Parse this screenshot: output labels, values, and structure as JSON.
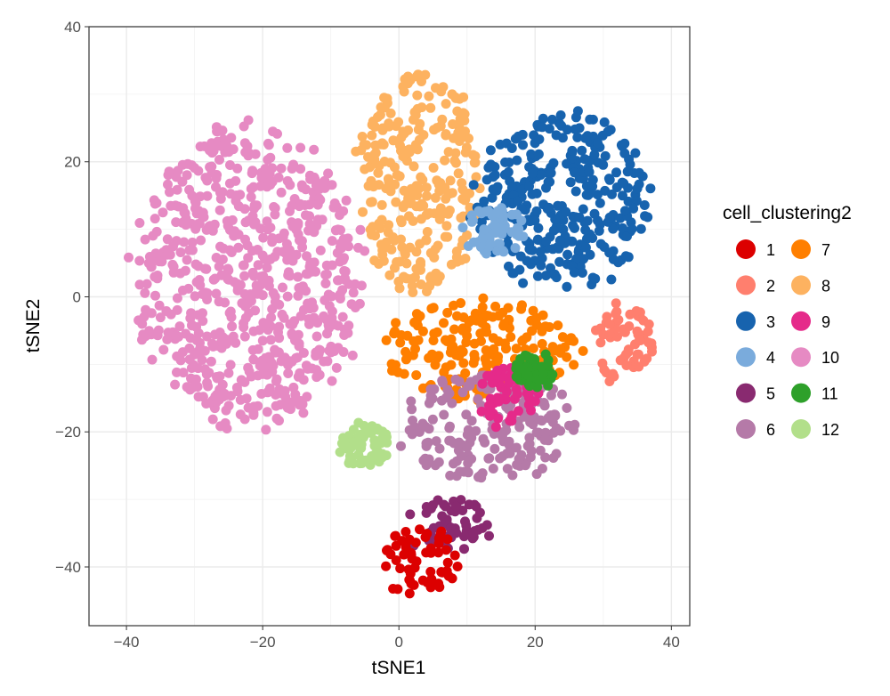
{
  "chart_data": {
    "type": "scatter",
    "xlabel": "tSNE1",
    "ylabel": "tSNE2",
    "xlim": [
      -45.5,
      42.7
    ],
    "ylim": [
      -48.7,
      40
    ],
    "xticks": [
      -40,
      -20,
      0,
      20,
      40
    ],
    "yticks": [
      -40,
      -20,
      0,
      20,
      40
    ],
    "xtick_labels": [
      "−40",
      "−20",
      "0",
      "20",
      "40"
    ],
    "ytick_labels": [
      "−40",
      "−20",
      "0",
      "20",
      "40"
    ],
    "grid": true,
    "legend": {
      "title": "cell_clustering2",
      "placement": "right",
      "entries": [
        {
          "label": "1",
          "color": "#DC0000"
        },
        {
          "label": "2",
          "color": "#FF7F6E"
        },
        {
          "label": "3",
          "color": "#1763AE"
        },
        {
          "label": "4",
          "color": "#7AABDC"
        },
        {
          "label": "5",
          "color": "#892A70"
        },
        {
          "label": "6",
          "color": "#B57AA8"
        },
        {
          "label": "7",
          "color": "#FF7F00"
        },
        {
          "label": "8",
          "color": "#FDB260"
        },
        {
          "label": "9",
          "color": "#E52A8A"
        },
        {
          "label": "10",
          "color": "#E68AC3"
        },
        {
          "label": "11",
          "color": "#2EA02A"
        },
        {
          "label": "12",
          "color": "#B2DF8A"
        }
      ]
    },
    "clusters_approx": [
      {
        "cluster": "10",
        "center": [
          -22,
          3
        ],
        "spread": [
          18,
          24
        ]
      },
      {
        "cluster": "8",
        "center": [
          3,
          17
        ],
        "spread": [
          10,
          17
        ]
      },
      {
        "cluster": "3",
        "center": [
          24,
          14
        ],
        "spread": [
          14,
          14
        ]
      },
      {
        "cluster": "4",
        "center": [
          14,
          10
        ],
        "spread": [
          5,
          4
        ]
      },
      {
        "cluster": "7",
        "center": [
          12,
          -8
        ],
        "spread": [
          16,
          8
        ]
      },
      {
        "cluster": "2",
        "center": [
          33,
          -7
        ],
        "spread": [
          4.5,
          7
        ]
      },
      {
        "cluster": "6",
        "center": [
          13,
          -19
        ],
        "spread": [
          14,
          9
        ]
      },
      {
        "cluster": "9",
        "center": [
          16,
          -15
        ],
        "spread": [
          5,
          5
        ]
      },
      {
        "cluster": "11",
        "center": [
          20,
          -11
        ],
        "spread": [
          3,
          3
        ]
      },
      {
        "cluster": "12",
        "center": [
          -5,
          -22
        ],
        "spread": [
          4,
          3.5
        ]
      },
      {
        "cluster": "5",
        "center": [
          7,
          -34
        ],
        "spread": [
          7,
          4.5
        ]
      },
      {
        "cluster": "1",
        "center": [
          3,
          -39
        ],
        "spread": [
          6.5,
          5.5
        ]
      }
    ]
  }
}
